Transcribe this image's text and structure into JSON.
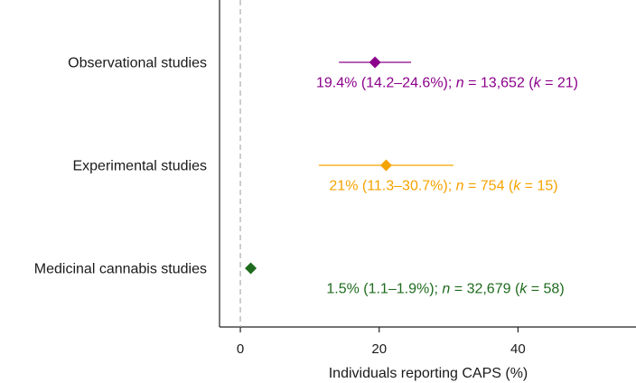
{
  "chart_data": {
    "type": "forest",
    "xlabel": "Individuals reporting CAPS (%)",
    "xlim": [
      -3,
      57
    ],
    "x_ticks": [
      0,
      20,
      40
    ],
    "tick_labels": [
      "0",
      "20",
      "40"
    ],
    "reference_line": 0,
    "grid": false,
    "rows": [
      {
        "label": "Observational studies",
        "estimate": 19.4,
        "ci": [
          14.2,
          24.6
        ],
        "color": "#8b008b",
        "annotation_parts": [
          {
            "text": "19.4% (14.2–24.6%); ",
            "italic": false
          },
          {
            "text": "n",
            "italic": true
          },
          {
            "text": " = 13,652 (",
            "italic": false
          },
          {
            "text": "k",
            "italic": true
          },
          {
            "text": " = 21)",
            "italic": false
          }
        ]
      },
      {
        "label": "Experimental studies",
        "estimate": 21,
        "ci": [
          11.3,
          30.7
        ],
        "color": "#f5a300",
        "annotation_parts": [
          {
            "text": "21% (11.3–30.7%); ",
            "italic": false
          },
          {
            "text": "n",
            "italic": true
          },
          {
            "text": " = 754 (",
            "italic": false
          },
          {
            "text": "k",
            "italic": true
          },
          {
            "text": " = 15)",
            "italic": false
          }
        ]
      },
      {
        "label": "Medicinal cannabis studies",
        "estimate": 1.5,
        "ci": [
          1.1,
          1.9
        ],
        "color": "#1e6b1e",
        "annotation_parts": [
          {
            "text": "1.5% (1.1–1.9%); ",
            "italic": false
          },
          {
            "text": "n",
            "italic": true
          },
          {
            "text": " = 32,679 (",
            "italic": false
          },
          {
            "text": "k",
            "italic": true
          },
          {
            "text": " = 58)",
            "italic": false
          }
        ]
      }
    ]
  }
}
